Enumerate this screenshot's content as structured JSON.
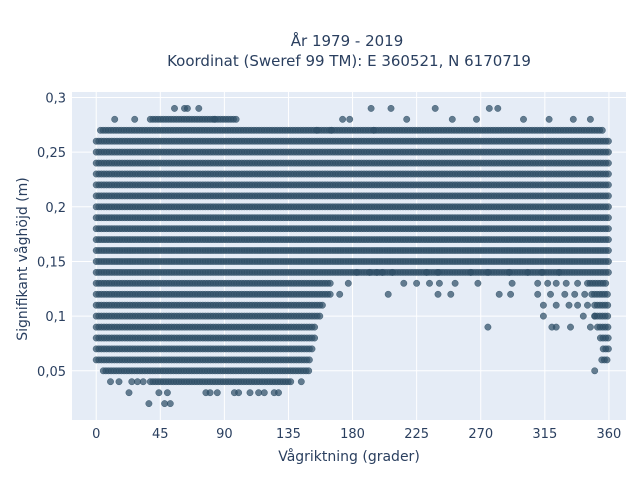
{
  "chart_data": {
    "type": "scatter",
    "title": "År 1979 - 2019",
    "subtitle": "Koordinat (Sweref 99 TM): E 360521, N 6170719",
    "xlabel": "Vågriktning (grader)",
    "ylabel": "Signifikant våghöjd (m)",
    "xlim": [
      -17,
      372
    ],
    "ylim": [
      0.005,
      0.305
    ],
    "xticks": [
      0,
      45,
      90,
      135,
      180,
      225,
      270,
      315,
      360
    ],
    "xtick_labels": [
      "0",
      "45",
      "90",
      "135",
      "180",
      "225",
      "270",
      "315",
      "360"
    ],
    "yticks": [
      0.05,
      0.1,
      0.15,
      0.2,
      0.25,
      0.3
    ],
    "ytick_labels": [
      "0,05",
      "0,1",
      "0,15",
      "0,2",
      "0,25",
      "0,3"
    ],
    "grid": true,
    "marker_color": "#2f4f66",
    "background_color": "#e5ecf6",
    "bands": [
      {
        "y": 0.26,
        "x": [
          0,
          360
        ]
      },
      {
        "y": 0.25,
        "x": [
          0,
          360
        ]
      },
      {
        "y": 0.24,
        "x": [
          0,
          360
        ]
      },
      {
        "y": 0.23,
        "x": [
          0,
          360
        ]
      },
      {
        "y": 0.22,
        "x": [
          0,
          360
        ]
      },
      {
        "y": 0.21,
        "x": [
          0,
          360
        ]
      },
      {
        "y": 0.2,
        "x": [
          0,
          360
        ]
      },
      {
        "y": 0.19,
        "x": [
          0,
          360
        ]
      },
      {
        "y": 0.18,
        "x": [
          0,
          360
        ]
      },
      {
        "y": 0.17,
        "x": [
          0,
          360
        ]
      },
      {
        "y": 0.16,
        "x": [
          0,
          360
        ]
      },
      {
        "y": 0.15,
        "x": [
          0,
          360
        ]
      },
      {
        "y": 0.14,
        "x": [
          0,
          360
        ]
      },
      {
        "y": 0.27,
        "x": [
          3,
          357
        ]
      },
      {
        "y": 0.28,
        "x": [
          38,
          100
        ]
      },
      {
        "y": 0.13,
        "x": [
          0,
          166
        ]
      },
      {
        "y": 0.12,
        "x": [
          0,
          166
        ]
      },
      {
        "y": 0.11,
        "x": [
          0,
          160
        ]
      },
      {
        "y": 0.1,
        "x": [
          0,
          158
        ]
      },
      {
        "y": 0.09,
        "x": [
          0,
          155
        ]
      },
      {
        "y": 0.08,
        "x": [
          0,
          154
        ]
      },
      {
        "y": 0.07,
        "x": [
          0,
          153
        ]
      },
      {
        "y": 0.06,
        "x": [
          0,
          151
        ]
      },
      {
        "y": 0.05,
        "x": [
          5,
          150
        ]
      },
      {
        "y": 0.04,
        "x": [
          38,
          137
        ]
      },
      {
        "y": 0.13,
        "x": [
          345,
          359
        ]
      },
      {
        "y": 0.12,
        "x": [
          348,
          360
        ]
      },
      {
        "y": 0.11,
        "x": [
          350,
          360
        ]
      },
      {
        "y": 0.1,
        "x": [
          350,
          360
        ]
      },
      {
        "y": 0.09,
        "x": [
          352,
          360
        ]
      },
      {
        "y": 0.08,
        "x": [
          354,
          360
        ]
      },
      {
        "y": 0.07,
        "x": [
          356,
          360
        ]
      },
      {
        "y": 0.06,
        "x": [
          355,
          360
        ]
      }
    ],
    "scattered_points": [
      [
        13,
        0.28
      ],
      [
        27,
        0.28
      ],
      [
        55,
        0.29
      ],
      [
        62,
        0.29
      ],
      [
        64,
        0.29
      ],
      [
        72,
        0.29
      ],
      [
        83,
        0.28
      ],
      [
        173,
        0.28
      ],
      [
        178,
        0.28
      ],
      [
        193,
        0.29
      ],
      [
        207,
        0.29
      ],
      [
        218,
        0.28
      ],
      [
        238,
        0.29
      ],
      [
        250,
        0.28
      ],
      [
        267,
        0.28
      ],
      [
        276,
        0.29
      ],
      [
        282,
        0.29
      ],
      [
        300,
        0.28
      ],
      [
        318,
        0.28
      ],
      [
        335,
        0.28
      ],
      [
        347,
        0.28
      ],
      [
        155,
        0.27
      ],
      [
        165,
        0.27
      ],
      [
        195,
        0.27
      ],
      [
        183,
        0.14
      ],
      [
        192,
        0.14
      ],
      [
        197,
        0.14
      ],
      [
        201,
        0.14
      ],
      [
        208,
        0.14
      ],
      [
        232,
        0.14
      ],
      [
        240,
        0.14
      ],
      [
        263,
        0.14
      ],
      [
        275,
        0.14
      ],
      [
        290,
        0.14
      ],
      [
        303,
        0.14
      ],
      [
        313,
        0.14
      ],
      [
        325,
        0.14
      ],
      [
        177,
        0.13
      ],
      [
        216,
        0.13
      ],
      [
        225,
        0.13
      ],
      [
        234,
        0.13
      ],
      [
        241,
        0.13
      ],
      [
        252,
        0.13
      ],
      [
        268,
        0.13
      ],
      [
        292,
        0.13
      ],
      [
        310,
        0.13
      ],
      [
        317,
        0.13
      ],
      [
        323,
        0.13
      ],
      [
        330,
        0.13
      ],
      [
        338,
        0.13
      ],
      [
        171,
        0.12
      ],
      [
        205,
        0.12
      ],
      [
        240,
        0.12
      ],
      [
        249,
        0.12
      ],
      [
        283,
        0.12
      ],
      [
        291,
        0.12
      ],
      [
        310,
        0.12
      ],
      [
        319,
        0.12
      ],
      [
        329,
        0.12
      ],
      [
        336,
        0.12
      ],
      [
        343,
        0.12
      ],
      [
        314,
        0.11
      ],
      [
        323,
        0.11
      ],
      [
        332,
        0.11
      ],
      [
        338,
        0.11
      ],
      [
        345,
        0.11
      ],
      [
        314,
        0.1
      ],
      [
        342,
        0.1
      ],
      [
        350,
        0.1
      ],
      [
        275,
        0.09
      ],
      [
        320,
        0.09
      ],
      [
        323,
        0.09
      ],
      [
        333,
        0.09
      ],
      [
        347,
        0.09
      ],
      [
        350,
        0.05
      ],
      [
        10,
        0.04
      ],
      [
        16,
        0.04
      ],
      [
        25,
        0.04
      ],
      [
        29,
        0.04
      ],
      [
        33,
        0.04
      ],
      [
        144,
        0.04
      ],
      [
        23,
        0.03
      ],
      [
        44,
        0.03
      ],
      [
        50,
        0.03
      ],
      [
        77,
        0.03
      ],
      [
        80,
        0.03
      ],
      [
        85,
        0.03
      ],
      [
        97,
        0.03
      ],
      [
        100,
        0.03
      ],
      [
        108,
        0.03
      ],
      [
        114,
        0.03
      ],
      [
        118,
        0.03
      ],
      [
        125,
        0.03
      ],
      [
        128,
        0.03
      ],
      [
        37,
        0.02
      ],
      [
        48,
        0.02
      ],
      [
        52,
        0.02
      ]
    ]
  }
}
